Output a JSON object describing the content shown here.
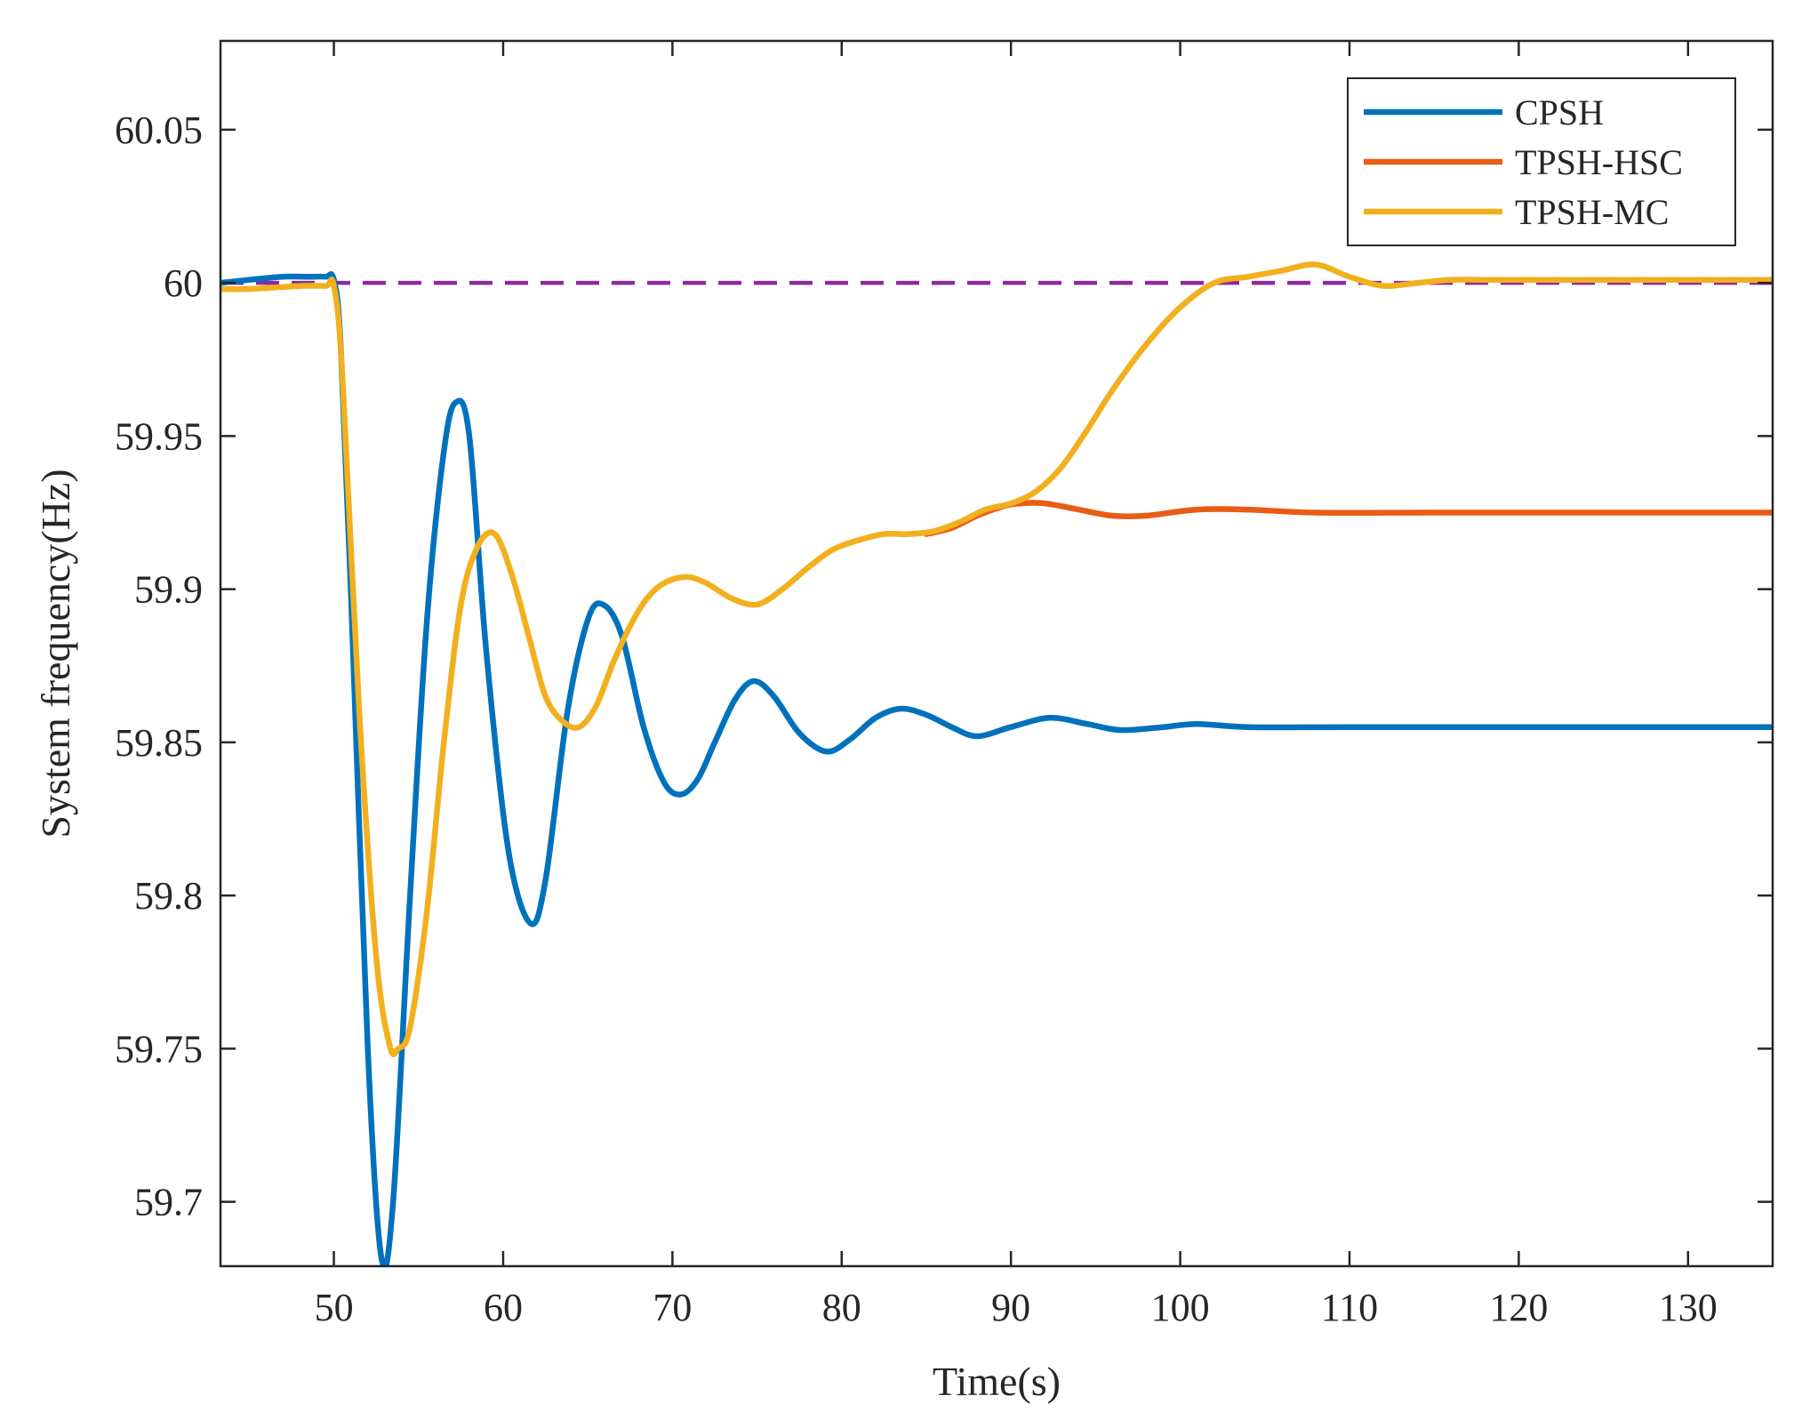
{
  "chart_data": {
    "type": "line",
    "title": "",
    "xlabel": "Time(s)",
    "ylabel": "System frequency(Hz)",
    "xlim": [
      43.3,
      135
    ],
    "ylim": [
      59.679,
      60.079
    ],
    "xticks": [
      50,
      60,
      70,
      80,
      90,
      100,
      110,
      120,
      130
    ],
    "xtick_labels": [
      "50",
      "60",
      "70",
      "80",
      "90",
      "100",
      "110",
      "120",
      "130"
    ],
    "yticks": [
      59.7,
      59.75,
      59.8,
      59.85,
      59.9,
      59.95,
      60,
      60.05
    ],
    "ytick_labels": [
      "59.7",
      "59.75",
      "59.8",
      "59.85",
      "59.9",
      "59.95",
      "60",
      "60.05"
    ],
    "grid": false,
    "legend_position": "top-right",
    "reference_line": {
      "y": 60,
      "color": "#8e2a9e",
      "style": "dashed"
    },
    "series": [
      {
        "name": "CPSH",
        "color": "#0072bd",
        "x": [
          43.3,
          45,
          47,
          48.5,
          49.5,
          50,
          50.4,
          51,
          52,
          52.8,
          53.5,
          54.5,
          55.5,
          56.5,
          57.2,
          58,
          59,
          60.3,
          61.6,
          62.5,
          63.8,
          65,
          65.9,
          67,
          68.3,
          69.5,
          70.5,
          71.5,
          72.5,
          73.7,
          74.8,
          76,
          77.5,
          79.1,
          80.5,
          82,
          83.5,
          85,
          86.5,
          88,
          90,
          92.3,
          94.5,
          96.5,
          99,
          101,
          104,
          110,
          120,
          135
        ],
        "y": [
          60.0,
          60.001,
          60.002,
          60.002,
          60.002,
          60.001,
          59.98,
          59.9,
          59.75,
          59.682,
          59.7,
          59.8,
          59.89,
          59.945,
          59.961,
          59.95,
          59.88,
          59.815,
          59.791,
          59.805,
          59.86,
          59.89,
          59.895,
          59.885,
          59.855,
          59.837,
          59.833,
          59.838,
          59.85,
          59.864,
          59.87,
          59.865,
          59.853,
          59.847,
          59.851,
          59.858,
          59.861,
          59.859,
          59.855,
          59.852,
          59.855,
          59.858,
          59.856,
          59.854,
          59.855,
          59.856,
          59.855,
          59.855,
          59.855,
          59.855
        ]
      },
      {
        "name": "TPSH-HSC",
        "color": "#e85c13",
        "x": [
          85,
          86.5,
          88,
          89.5,
          90.5,
          92,
          94,
          96,
          98,
          101,
          104,
          108,
          115,
          125,
          135
        ],
        "y": [
          59.918,
          59.92,
          59.924,
          59.927,
          59.928,
          59.928,
          59.926,
          59.924,
          59.924,
          59.926,
          59.926,
          59.925,
          59.925,
          59.925,
          59.925
        ]
      },
      {
        "name": "TPSH-MC",
        "color": "#f2b01e",
        "x": [
          43.3,
          45,
          48,
          49.5,
          50,
          50.5,
          51.5,
          52.5,
          53.3,
          53.8,
          54.5,
          55.5,
          56.5,
          57.5,
          58.5,
          59.5,
          60.5,
          61.5,
          62.5,
          63.5,
          64.5,
          65.5,
          66.5,
          67.5,
          68.5,
          69.5,
          70.8,
          72,
          73.5,
          75,
          76.5,
          78,
          79.5,
          81,
          82.5,
          84,
          85.5,
          87,
          88.5,
          90,
          91.5,
          93,
          94.5,
          96,
          98,
          100,
          102,
          104,
          106,
          108,
          110,
          112,
          114,
          116,
          118,
          120,
          123,
          126,
          130,
          135
        ],
        "y": [
          59.998,
          59.998,
          59.999,
          59.999,
          59.999,
          59.97,
          59.86,
          59.78,
          59.751,
          59.75,
          59.757,
          59.795,
          59.85,
          59.895,
          59.914,
          59.918,
          59.905,
          59.885,
          59.865,
          59.857,
          59.855,
          59.862,
          59.876,
          59.888,
          59.897,
          59.902,
          59.904,
          59.902,
          59.897,
          59.895,
          59.9,
          59.907,
          59.913,
          59.916,
          59.918,
          59.918,
          59.919,
          59.922,
          59.926,
          59.928,
          59.932,
          59.94,
          59.952,
          59.965,
          59.98,
          59.992,
          60.0,
          60.002,
          60.004,
          60.006,
          60.002,
          59.999,
          60.0,
          60.001,
          60.001,
          60.001,
          60.001,
          60.001,
          60.001,
          60.001
        ]
      }
    ]
  }
}
